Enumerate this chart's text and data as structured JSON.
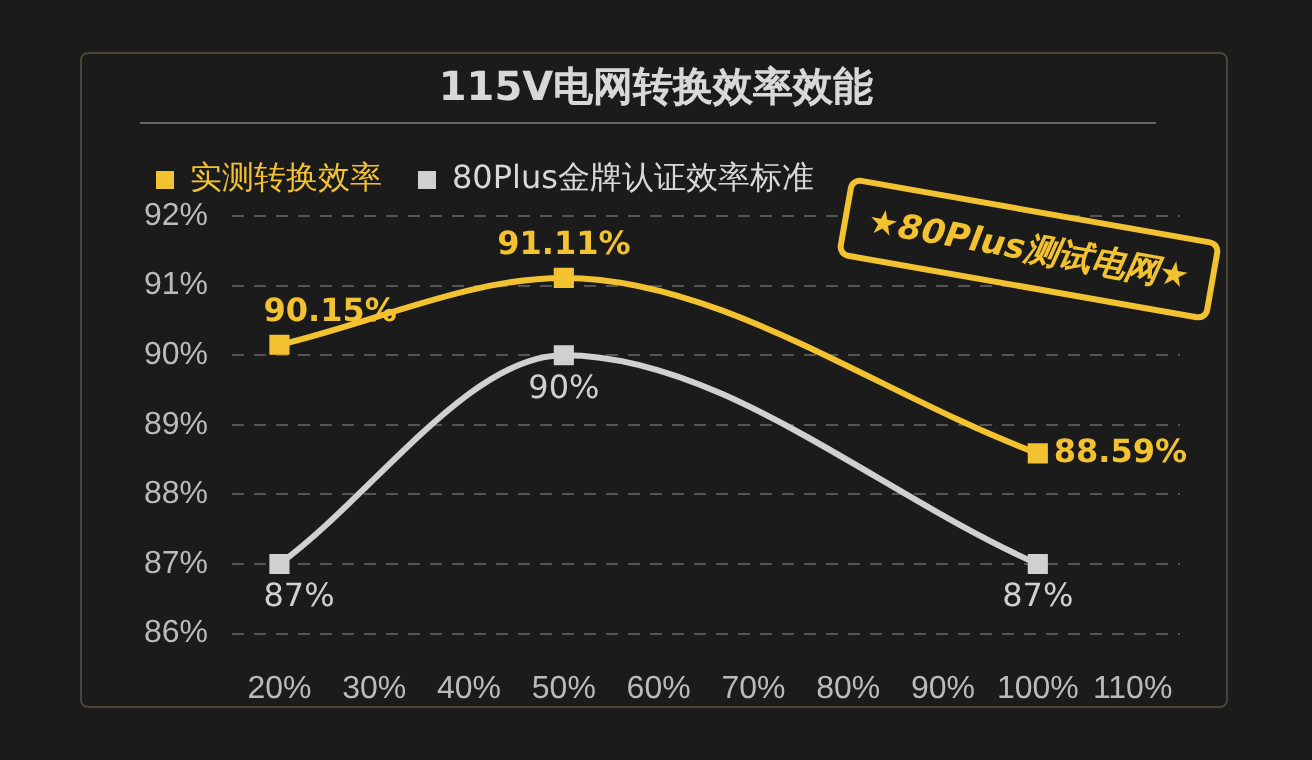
{
  "chart_data": {
    "type": "line",
    "title": "115V电网转换效率效能",
    "categories": [
      "20%",
      "30%",
      "40%",
      "50%",
      "60%",
      "70%",
      "80%",
      "90%",
      "100%",
      "110%"
    ],
    "series": [
      {
        "name": "实测转换效率",
        "color": "#f2c230",
        "values": [
          90.15,
          null,
          null,
          91.11,
          null,
          null,
          null,
          null,
          88.59,
          null
        ],
        "value_labels": [
          "90.15%",
          null,
          null,
          "91.11%",
          null,
          null,
          null,
          null,
          "88.59%",
          null
        ]
      },
      {
        "name": "80Plus金牌认证效率标准",
        "color": "#d0d0d0",
        "values": [
          87,
          null,
          null,
          90,
          null,
          null,
          null,
          null,
          87,
          null
        ],
        "value_labels": [
          "87%",
          null,
          null,
          "90%",
          null,
          null,
          null,
          null,
          "87%",
          null
        ]
      }
    ],
    "ylim": [
      86,
      92
    ],
    "yticks": [
      {
        "value": 86,
        "label": "86%"
      },
      {
        "value": 87,
        "label": "87%"
      },
      {
        "value": 88,
        "label": "88%"
      },
      {
        "value": 89,
        "label": "89%"
      },
      {
        "value": 90,
        "label": "90%"
      },
      {
        "value": 91,
        "label": "91%"
      },
      {
        "value": 92,
        "label": "92%"
      }
    ],
    "grid": "y",
    "legend": "top",
    "marker": "square",
    "line_style": "solid",
    "annotations": [
      "★80Plus测试电网★"
    ]
  }
}
